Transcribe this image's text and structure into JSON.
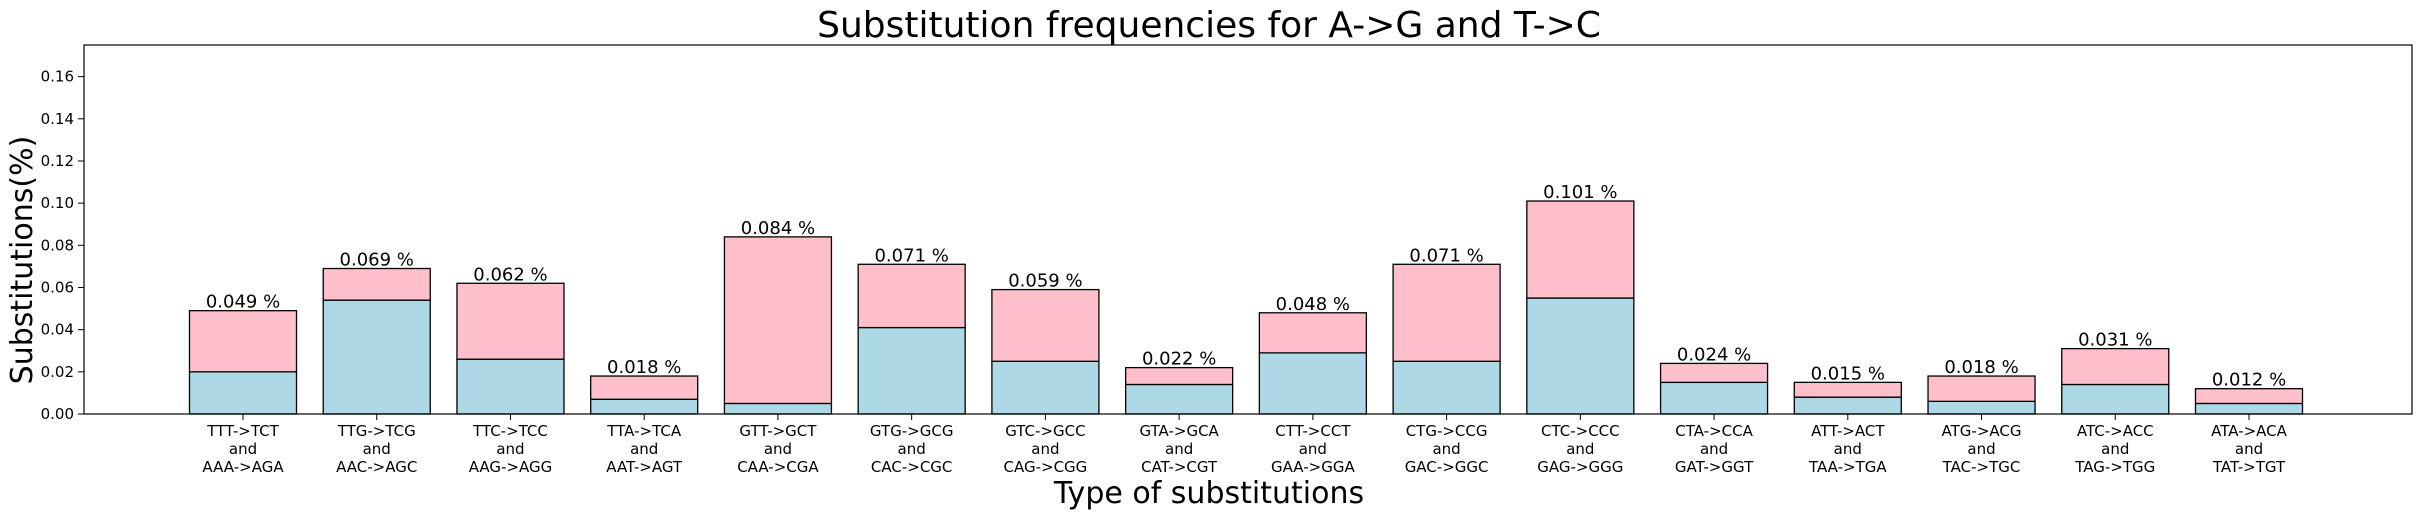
{
  "chart_data": {
    "type": "bar",
    "stacked": true,
    "title": "Substitution frequencies for A->G and T->C",
    "xlabel": "Type of substitutions",
    "ylabel": "Substitutions(%)",
    "ylim": [
      0,
      0.175
    ],
    "yticks": [
      "0.00",
      "0.02",
      "0.04",
      "0.06",
      "0.08",
      "0.10",
      "0.12",
      "0.14",
      "0.16"
    ],
    "ytick_values": [
      0,
      0.02,
      0.04,
      0.06,
      0.08,
      0.1,
      0.12,
      0.14,
      0.16
    ],
    "categories": [
      [
        "TTT->TCT",
        "and",
        "AAA->AGA"
      ],
      [
        "TTG->TCG",
        "and",
        "AAC->AGC"
      ],
      [
        "TTC->TCC",
        "and",
        "AAG->AGG"
      ],
      [
        "TTA->TCA",
        "and",
        "AAT->AGT"
      ],
      [
        "GTT->GCT",
        "and",
        "CAA->CGA"
      ],
      [
        "GTG->GCG",
        "and",
        "CAC->CGC"
      ],
      [
        "GTC->GCC",
        "and",
        "CAG->CGG"
      ],
      [
        "GTA->GCA",
        "and",
        "CAT->CGT"
      ],
      [
        "CTT->CCT",
        "and",
        "GAA->GGA"
      ],
      [
        "CTG->CCG",
        "and",
        "GAC->GGC"
      ],
      [
        "CTC->CCC",
        "and",
        "GAG->GGG"
      ],
      [
        "CTA->CCA",
        "and",
        "GAT->GGT"
      ],
      [
        "ATT->ACT",
        "and",
        "TAA->TGA"
      ],
      [
        "ATG->ACG",
        "and",
        "TAC->TGC"
      ],
      [
        "ATC->ACC",
        "and",
        "TAG->TGG"
      ],
      [
        "ATA->ACA",
        "and",
        "TAT->TGT"
      ]
    ],
    "series": [
      {
        "name": "bottom",
        "color": "#add8e6",
        "values": [
          0.02,
          0.054,
          0.026,
          0.007,
          0.005,
          0.041,
          0.025,
          0.014,
          0.029,
          0.025,
          0.055,
          0.015,
          0.008,
          0.006,
          0.014,
          0.005
        ]
      },
      {
        "name": "top",
        "color": "#ffc0cb",
        "values": [
          0.029,
          0.015,
          0.036,
          0.011,
          0.079,
          0.03,
          0.034,
          0.008,
          0.019,
          0.046,
          0.046,
          0.009,
          0.007,
          0.012,
          0.017,
          0.007
        ]
      }
    ],
    "totals": [
      0.049,
      0.069,
      0.062,
      0.018,
      0.084,
      0.071,
      0.059,
      0.022,
      0.048,
      0.071,
      0.101,
      0.024,
      0.015,
      0.018,
      0.031,
      0.012
    ],
    "data_labels": [
      "0.049 %",
      "0.069 %",
      "0.062 %",
      "0.018 %",
      "0.084 %",
      "0.071 %",
      "0.059 %",
      "0.022 %",
      "0.048 %",
      "0.071 %",
      "0.101 %",
      "0.024 %",
      "0.015 %",
      "0.018 %",
      "0.031 %",
      "0.012 %"
    ]
  }
}
